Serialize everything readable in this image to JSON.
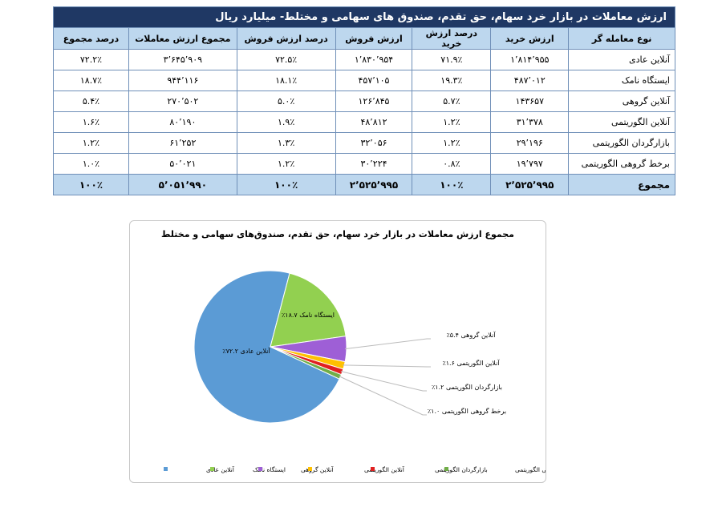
{
  "table": {
    "title": "ارزش معاملات در بازار خرد سهام، حق تقدم، صندوق های سهامی و مختلط- میلیارد ریال",
    "headers": [
      "نوع معامله گر",
      "ارزش خرید",
      "درصد ارزش خرید",
      "ارزش فروش",
      "درصد ارزش فروش",
      "مجموع ارزش معاملات",
      "درصد مجموع"
    ],
    "rows": [
      [
        "آنلاین عادی",
        "۱٬۸۱۴٬۹۵۵",
        "۷۱.۹٪",
        "۱٬۸۳۰٬۹۵۴",
        "۷۲.۵٪",
        "۳٬۶۴۵٬۹۰۹",
        "۷۲.۲٪"
      ],
      [
        "ایستگاه نامک",
        "۴۸۷٬۰۱۲",
        "۱۹.۳٪",
        "۴۵۷٬۱۰۵",
        "۱۸.۱٪",
        "۹۴۴٬۱۱۶",
        "۱۸.۷٪"
      ],
      [
        "آنلاین گروهی",
        "۱۴۳۶۵۷",
        "۵.۷٪",
        "۱۲۶٬۸۴۵",
        "۵.۰٪",
        "۲۷۰٬۵۰۲",
        "۵.۴٪"
      ],
      [
        "آنلاین الگوریتمی",
        "۳۱٬۳۷۸",
        "۱.۲٪",
        "۴۸٬۸۱۲",
        "۱.۹٪",
        "۸۰٬۱۹۰",
        "۱.۶٪"
      ],
      [
        "بازارگردان الگوریتمی",
        "۲۹٬۱۹۶",
        "۱.۲٪",
        "۳۲٬۰۵۶",
        "۱.۳٪",
        "۶۱٬۲۵۲",
        "۱.۲٪"
      ],
      [
        "برخط گروهی الگوریتمی",
        "۱۹٬۷۹۷",
        "۰.۸٪",
        "۳۰٬۲۲۴",
        "۱.۲٪",
        "۵۰٬۰۲۱",
        "۱.۰٪"
      ]
    ],
    "total": [
      "مجموع",
      "۲٬۵۲۵٬۹۹۵",
      "۱۰۰٪",
      "۲٬۵۲۵٬۹۹۵",
      "۱۰۰٪",
      "۵٬۰۵۱٬۹۹۰",
      "۱۰۰٪"
    ]
  },
  "chart_data": {
    "type": "pie",
    "title": "مجموع ارزش معاملات در بازار خرد سهام، حق تقدم، صندوق‌های سهامی و مختلط",
    "categories": [
      "آنلاین عادی",
      "ایستگاه نامک",
      "آنلاین گروهی",
      "آنلاین الگوریتمی",
      "بازارگردان الگوریتمی",
      "برخط گروهی الگوریتمی"
    ],
    "values": [
      72.2,
      18.7,
      5.4,
      1.6,
      1.2,
      1.0
    ],
    "value_labels": [
      "۷۲.۲٪",
      "۱۸.۷٪",
      "۵.۴٪",
      "۱.۶٪",
      "۱.۲٪",
      "۱.۰٪"
    ],
    "colors": [
      "#5b9bd5",
      "#92d050",
      "#9e5fd6",
      "#ffc000",
      "#e02020",
      "#70ad47"
    ]
  }
}
